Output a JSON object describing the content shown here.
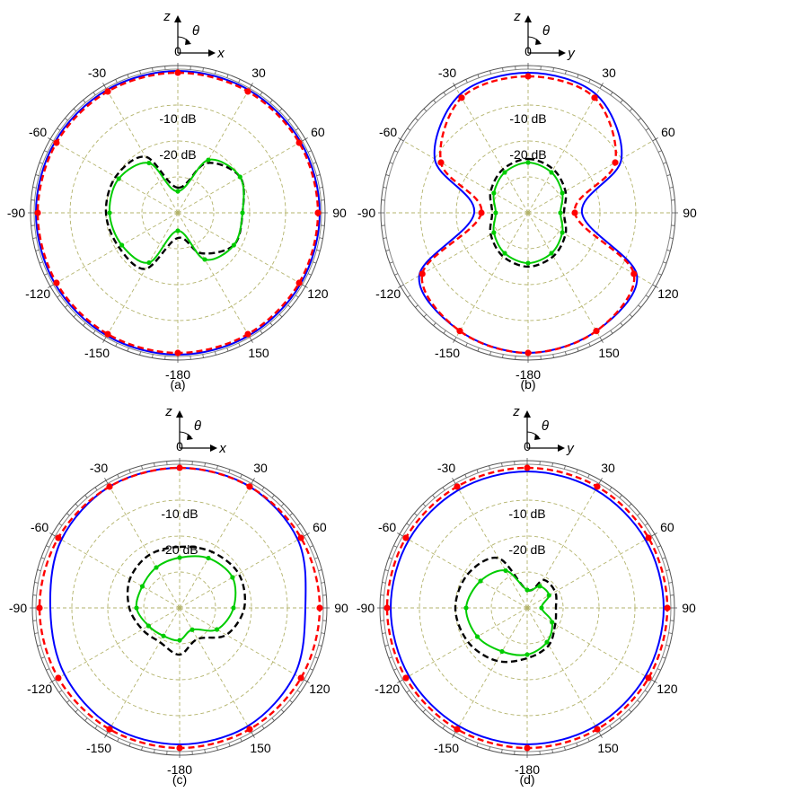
{
  "chart_data": [
    {
      "type": "polar",
      "panel_label": "(a)",
      "coord_axes": {
        "vertical": "z",
        "horizontal": "x",
        "angle": "θ"
      },
      "angle_ticks": [
        "0",
        "30",
        "60",
        "90",
        "120",
        "150",
        "-180",
        "-150",
        "-120",
        "-90",
        "-60",
        "-30"
      ],
      "angle_tick_values": [
        0,
        30,
        60,
        90,
        120,
        150,
        180,
        -150,
        -120,
        -90,
        -60,
        -30
      ],
      "r_unit": "dB",
      "rlim": [
        -40,
        0
      ],
      "rings": [
        {
          "value": -10,
          "label": "-10 dB"
        },
        {
          "value": -20,
          "label": "-20 dB"
        },
        {
          "value": -30,
          "label": ""
        }
      ],
      "grid": true,
      "angles_deg": [
        0,
        30,
        60,
        90,
        120,
        150,
        180,
        210,
        240,
        270,
        300,
        330
      ],
      "series": [
        {
          "color": "#0000ff",
          "style": "solid",
          "markers": false,
          "values": [
            -0.5,
            -0.5,
            -0.5,
            -0.5,
            -0.5,
            -0.5,
            -0.5,
            -0.5,
            -0.5,
            -0.5,
            -0.5,
            -0.5
          ]
        },
        {
          "color": "#ff0000",
          "style": "dashed",
          "markers": true,
          "values": [
            -1,
            -1,
            -1,
            -1,
            -1,
            -1,
            -1,
            -1,
            -1,
            -1,
            -1,
            -1
          ]
        },
        {
          "color": "#000000",
          "style": "dashed",
          "markers": false,
          "values": [
            -33,
            -24,
            -20,
            -22,
            -22,
            -27,
            -33,
            -22,
            -21,
            -20,
            -20,
            -22
          ]
        },
        {
          "color": "#00cc00",
          "style": "solid",
          "markers": true,
          "values": [
            -34,
            -23,
            -20,
            -22,
            -22,
            -25,
            -35,
            -24,
            -22,
            -21,
            -21,
            -24
          ]
        }
      ]
    },
    {
      "type": "polar",
      "panel_label": "(b)",
      "coord_axes": {
        "vertical": "z",
        "horizontal": "y",
        "angle": "θ"
      },
      "angle_ticks": [
        "0",
        "30",
        "60",
        "90",
        "120",
        "150",
        "-180",
        "-150",
        "-120",
        "-90",
        "-60",
        "-30"
      ],
      "angle_tick_values": [
        0,
        30,
        60,
        90,
        120,
        150,
        180,
        -150,
        -120,
        -90,
        -60,
        -30
      ],
      "r_unit": "dB",
      "rlim": [
        -40,
        0
      ],
      "rings": [
        {
          "value": -10,
          "label": "-10 dB"
        },
        {
          "value": -20,
          "label": "-20 dB"
        },
        {
          "value": -30,
          "label": ""
        }
      ],
      "grid": true,
      "angles_deg": [
        0,
        30,
        60,
        90,
        120,
        150,
        180,
        210,
        240,
        270,
        300,
        330
      ],
      "series": [
        {
          "color": "#0000ff",
          "style": "solid",
          "markers": false,
          "values": [
            -1,
            -2,
            -10,
            -25,
            -5,
            -2,
            -1,
            -2,
            -5,
            -25,
            -10,
            -2
          ]
        },
        {
          "color": "#ff0000",
          "style": "dashed",
          "markers": true,
          "values": [
            -2,
            -3,
            -12,
            -27,
            -6,
            -2,
            -1,
            -2,
            -6,
            -27,
            -12,
            -3
          ]
        },
        {
          "color": "#000000",
          "style": "dashed",
          "markers": false,
          "values": [
            -25,
            -26,
            -28,
            -30,
            -28,
            -26,
            -25,
            -26,
            -28,
            -30,
            -28,
            -26
          ]
        },
        {
          "color": "#00cc00",
          "style": "solid",
          "markers": true,
          "values": [
            -26,
            -27,
            -29,
            -31,
            -29,
            -27,
            -26,
            -27,
            -29,
            -31,
            -29,
            -27
          ]
        }
      ]
    },
    {
      "type": "polar",
      "panel_label": "(c)",
      "coord_axes": {
        "vertical": "z",
        "horizontal": "x",
        "angle": "θ"
      },
      "angle_ticks": [
        "0",
        "30",
        "60",
        "90",
        "120",
        "150",
        "-180",
        "-150",
        "-120",
        "-90",
        "-60",
        "-30"
      ],
      "angle_tick_values": [
        0,
        30,
        60,
        90,
        120,
        150,
        180,
        -150,
        -120,
        -90,
        -60,
        -30
      ],
      "r_unit": "dB",
      "rlim": [
        -40,
        0
      ],
      "rings": [
        {
          "value": -10,
          "label": "-10 dB"
        },
        {
          "value": -20,
          "label": "-20 dB"
        },
        {
          "value": -30,
          "label": ""
        }
      ],
      "grid": true,
      "angles_deg": [
        0,
        30,
        60,
        90,
        120,
        150,
        180,
        210,
        240,
        270,
        300,
        330
      ],
      "series": [
        {
          "color": "#0000ff",
          "style": "solid",
          "markers": false,
          "values": [
            -1,
            -1,
            -2,
            -5,
            -3,
            -2,
            -2,
            -2,
            -3,
            -4,
            -2,
            -1
          ]
        },
        {
          "color": "#ff0000",
          "style": "dashed",
          "markers": true,
          "values": [
            -1,
            -1,
            -1,
            -1,
            -1,
            -1,
            -1,
            -1,
            -1,
            -1,
            -1,
            -1
          ]
        },
        {
          "color": "#000000",
          "style": "dashed",
          "markers": false,
          "values": [
            -23,
            -22,
            -21,
            -22,
            -25,
            -30,
            -27,
            -29,
            -28,
            -26,
            -24,
            -23
          ]
        },
        {
          "color": "#00cc00",
          "style": "solid",
          "markers": true,
          "values": [
            -26,
            -24,
            -23,
            -25,
            -28,
            -33,
            -31,
            -31,
            -30,
            -28,
            -28,
            -27
          ]
        }
      ]
    },
    {
      "type": "polar",
      "panel_label": "(d)",
      "coord_axes": {
        "vertical": "z",
        "horizontal": "y",
        "angle": "θ"
      },
      "angle_ticks": [
        "0",
        "30",
        "60",
        "90",
        "120",
        "150",
        "-180",
        "-150",
        "-120",
        "-90",
        "-60",
        "-30"
      ],
      "angle_tick_values": [
        0,
        30,
        60,
        90,
        120,
        150,
        180,
        -150,
        -120,
        -90,
        -60,
        -30
      ],
      "r_unit": "dB",
      "rlim": [
        -40,
        0
      ],
      "rings": [
        {
          "value": -10,
          "label": "-10 dB"
        },
        {
          "value": -20,
          "label": "-20 dB"
        },
        {
          "value": -30,
          "label": ""
        }
      ],
      "grid": true,
      "angles_deg": [
        0,
        30,
        60,
        90,
        120,
        150,
        180,
        210,
        240,
        270,
        300,
        330
      ],
      "series": [
        {
          "color": "#0000ff",
          "style": "solid",
          "markers": false,
          "values": [
            -2,
            -2,
            -2,
            -2,
            -2,
            -2,
            -2,
            -2,
            -2,
            -2,
            -2,
            -2
          ]
        },
        {
          "color": "#ff0000",
          "style": "dashed",
          "markers": true,
          "values": [
            -1,
            -1,
            -1,
            -1,
            -1,
            -1,
            -1,
            -1,
            -1,
            -1,
            -1,
            -1
          ]
        },
        {
          "color": "#000000",
          "style": "dashed",
          "markers": false,
          "values": [
            -35,
            -31,
            -31,
            -32,
            -31,
            -28,
            -26,
            -23,
            -21,
            -20,
            -21,
            -24
          ]
        },
        {
          "color": "#00cc00",
          "style": "solid",
          "markers": true,
          "values": [
            -35,
            -33,
            -33,
            -36,
            -32,
            -29,
            -27,
            -26,
            -24,
            -23,
            -25,
            -28
          ]
        }
      ]
    }
  ]
}
